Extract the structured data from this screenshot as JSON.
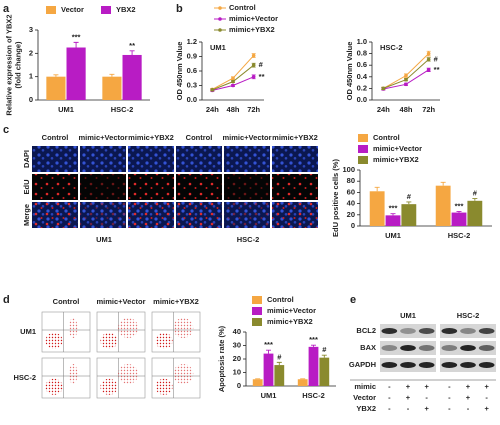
{
  "panel_labels": [
    "a",
    "b",
    "c",
    "d",
    "e"
  ],
  "chart_data": [
    {
      "type": "bar",
      "ylabel": [
        "Relative expression of YBX2",
        "(fold change)"
      ],
      "categories": [
        "UM1",
        "HSC-2"
      ],
      "series": [
        {
          "name": "Vector",
          "color": "#f5a742",
          "values": [
            1.0,
            1.0
          ],
          "errors": [
            0.08,
            0.1
          ]
        },
        {
          "name": "YBX2",
          "color": "#b81cc4",
          "values": [
            2.25,
            1.93
          ],
          "errors": [
            0.22,
            0.18
          ],
          "annotations": [
            "***",
            "**"
          ]
        }
      ],
      "ylim": [
        0,
        3
      ],
      "yticks": [
        0,
        1,
        2,
        3
      ]
    },
    {
      "type": "line",
      "subtitle": "UM1",
      "ylabel": [
        "OD 450nm Value"
      ],
      "categories": [
        "24h",
        "48h",
        "72h"
      ],
      "series": [
        {
          "name": "Control",
          "color": "#f5a742",
          "values": [
            0.22,
            0.45,
            0.92
          ],
          "errors": [
            0.02,
            0.03,
            0.04
          ]
        },
        {
          "name": "mimic+Vector",
          "color": "#b81cc4",
          "values": [
            0.2,
            0.3,
            0.48
          ],
          "errors": [
            0.02,
            0.02,
            0.04
          ],
          "annotations": [
            null,
            null,
            "**"
          ]
        },
        {
          "name": "mimic+YBX2",
          "color": "#8a8a2e",
          "values": [
            0.21,
            0.38,
            0.72
          ],
          "errors": [
            0.02,
            0.02,
            0.04
          ],
          "annotations": [
            null,
            null,
            "#"
          ]
        }
      ],
      "ylim": [
        0,
        1.2
      ],
      "yticks": [
        {
          "value": 0,
          "label": "0.0"
        },
        0.3,
        0.6,
        0.9,
        1.2
      ]
    },
    {
      "type": "line",
      "subtitle": "HSC-2",
      "ylabel": [
        "OD 450nm Value"
      ],
      "categories": [
        "24h",
        "48h",
        "72h"
      ],
      "series": [
        {
          "name": "Control",
          "color": "#f5a742",
          "values": [
            0.2,
            0.42,
            0.8
          ],
          "errors": [
            0.02,
            0.03,
            0.04
          ]
        },
        {
          "name": "mimic+Vector",
          "color": "#b81cc4",
          "values": [
            0.19,
            0.27,
            0.52
          ],
          "errors": [
            0.02,
            0.02,
            0.03
          ],
          "annotations": [
            null,
            null,
            "**"
          ]
        },
        {
          "name": "mimic+YBX2",
          "color": "#8a8a2e",
          "values": [
            0.2,
            0.35,
            0.7
          ],
          "errors": [
            0.02,
            0.02,
            0.03
          ],
          "annotations": [
            null,
            null,
            "#"
          ]
        }
      ],
      "ylim": [
        0,
        1.0
      ],
      "yticks": [
        {
          "value": 0,
          "label": "0.0"
        },
        0.2,
        0.4,
        0.6,
        0.8,
        {
          "value": 1.0,
          "label": "1.0"
        }
      ]
    },
    {
      "type": "bar",
      "ylabel": [
        "EdU positive cells (%)"
      ],
      "categories": [
        "UM1",
        "HSC-2"
      ],
      "series": [
        {
          "name": "Control",
          "color": "#f5a742",
          "values": [
            62,
            72
          ],
          "errors": [
            7,
            6
          ]
        },
        {
          "name": "mimic+Vector",
          "color": "#b81cc4",
          "values": [
            19,
            24
          ],
          "errors": [
            3,
            2
          ],
          "annotations": [
            "***",
            "***"
          ]
        },
        {
          "name": "mimic+YBX2",
          "color": "#8a8a2e",
          "values": [
            39,
            45
          ],
          "errors": [
            4,
            4
          ],
          "annotations": [
            "#",
            "#"
          ]
        }
      ],
      "ylim": [
        0,
        100
      ],
      "yticks": [
        0,
        20,
        40,
        60,
        80,
        100
      ]
    },
    {
      "type": "bar",
      "ylabel": [
        "Apoptosis rate (%)"
      ],
      "categories": [
        "UM1",
        "HSC-2"
      ],
      "series": [
        {
          "name": "Control",
          "color": "#f5a742",
          "values": [
            5,
            5
          ],
          "errors": [
            0.3,
            0.3
          ]
        },
        {
          "name": "mimic+Vector",
          "color": "#b81cc4",
          "values": [
            24,
            29
          ],
          "errors": [
            2.5,
            1.2
          ],
          "annotations": [
            "***",
            "***"
          ]
        },
        {
          "name": "mimic+YBX2",
          "color": "#8a8a2e",
          "values": [
            15.5,
            21
          ],
          "errors": [
            2,
            1.8
          ],
          "annotations": [
            "#",
            "#"
          ]
        }
      ],
      "ylim": [
        0,
        40
      ],
      "yticks": [
        0,
        10,
        20,
        30,
        40
      ]
    }
  ],
  "edu_images": {
    "columns": [
      "Control",
      "mimic+Vector",
      "mimic+YBX2",
      "Control",
      "mimic+Vector",
      "mimic+YBX2"
    ],
    "rows": [
      "DAPI",
      "EdU",
      "Merge"
    ],
    "groups": [
      "UM1",
      "HSC-2"
    ]
  },
  "flow_plots": {
    "columns": [
      "Control",
      "mimic+Vector",
      "mimic+YBX2"
    ],
    "rows": [
      "UM1",
      "HSC-2"
    ]
  },
  "western_blot": {
    "groups": [
      "UM1",
      "HSC-2"
    ],
    "proteins": [
      "BCL2",
      "BAX",
      "GAPDH"
    ],
    "treatments": [
      {
        "name": "mimic",
        "signs": [
          "-",
          "+",
          "+",
          "-",
          "+",
          "+"
        ]
      },
      {
        "name": "Vector",
        "signs": [
          "-",
          "+",
          "-",
          "-",
          "+",
          "-"
        ]
      },
      {
        "name": "YBX2",
        "signs": [
          "-",
          "-",
          "+",
          "-",
          "-",
          "+"
        ]
      }
    ]
  }
}
